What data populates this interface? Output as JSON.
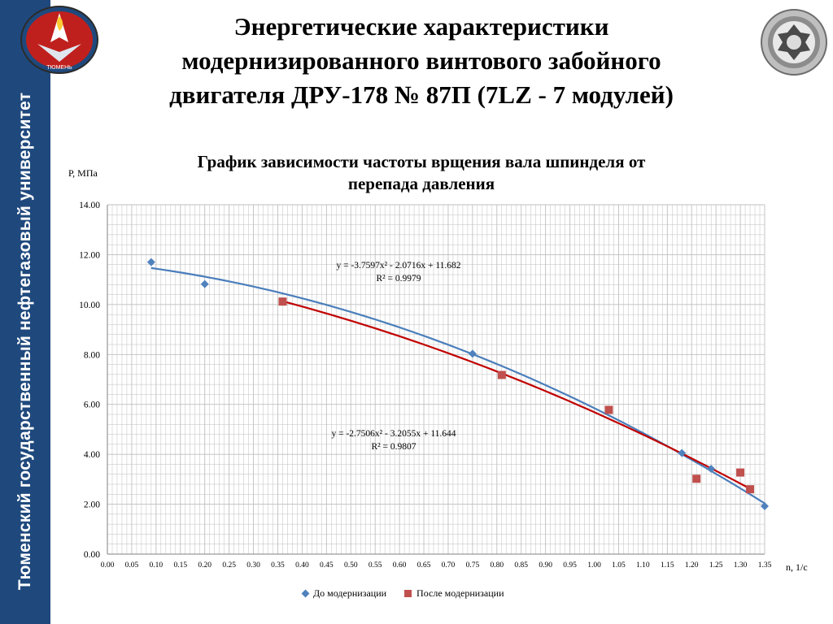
{
  "sidebar": {
    "text": "Тюменский государственный нефтегазовый университет"
  },
  "header": {
    "title_lines": [
      "Энергетические характеристики",
      "модернизированного винтового забойного",
      "двигателя ДРУ-178 № 87П (7LZ - 7 модулей)"
    ],
    "logo_text": "ТЮМЕНЬ"
  },
  "chart_data": {
    "type": "scatter",
    "title_lines": [
      "График зависимости частоты врщения вала шпинделя от",
      "перепада давления"
    ],
    "ylabel": "Р, МПа",
    "xlabel": "n, 1/с",
    "xlim": [
      0,
      1.35
    ],
    "ylim": [
      0,
      14
    ],
    "x_ticks": [
      "0.00",
      "0.05",
      "0.10",
      "0.15",
      "0.20",
      "0.25",
      "0.30",
      "0.35",
      "0.40",
      "0.45",
      "0.50",
      "0.55",
      "0.60",
      "0.65",
      "0.70",
      "0.75",
      "0.80",
      "0.85",
      "0.90",
      "0.95",
      "1.00",
      "1.05",
      "1.10",
      "1.15",
      "1.20",
      "1.25",
      "1.30",
      "1.35"
    ],
    "y_ticks": [
      "0.00",
      "2.00",
      "4.00",
      "6.00",
      "8.00",
      "10.00",
      "12.00",
      "14.00"
    ],
    "grid": true,
    "legend_position": "bottom",
    "series": [
      {
        "name": "До модернизации",
        "color": "#4f81bd",
        "marker": "diamond",
        "points": [
          [
            0.09,
            11.7
          ],
          [
            0.2,
            10.82
          ],
          [
            0.75,
            8.03
          ],
          [
            1.18,
            4.05
          ],
          [
            1.24,
            3.42
          ],
          [
            1.35,
            1.92
          ]
        ],
        "trendline": {
          "coefficients": [
            -3.7597,
            -2.0716,
            11.682
          ],
          "x_range": [
            0.09,
            1.35
          ],
          "equation": "y = -3.7597x² - 2.0716x + 11.682",
          "r2": "R² = 0.9979"
        }
      },
      {
        "name": "После модернизации",
        "color": "#c0504d",
        "marker": "square",
        "points": [
          [
            0.36,
            10.12
          ],
          [
            0.81,
            7.18
          ],
          [
            1.03,
            5.78
          ],
          [
            1.21,
            3.02
          ],
          [
            1.3,
            3.27
          ],
          [
            1.32,
            2.6
          ]
        ],
        "trendline": {
          "coefficients": [
            -2.7506,
            -3.2055,
            11.644
          ],
          "x_range": [
            0.36,
            1.32
          ],
          "equation": "y = -2.7506x² - 3.2055x + 11.644",
          "r2": "R² = 0.9807"
        }
      }
    ]
  }
}
